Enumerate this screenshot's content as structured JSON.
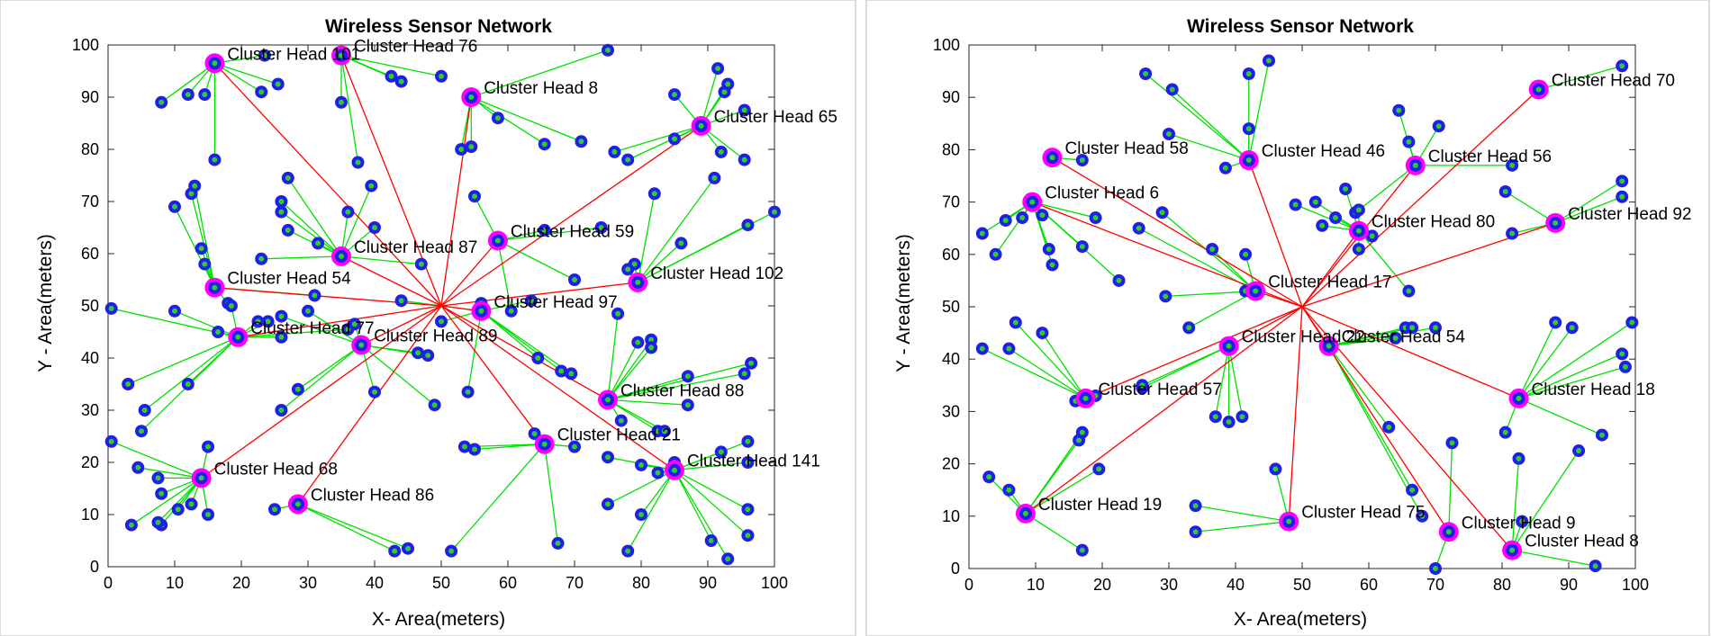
{
  "colors": {
    "node": "#1f1fe8",
    "node_inner": "#2ecc2e",
    "member_link": "#00e000",
    "head_link": "#ff0000",
    "head_ring": "#ff00ff"
  },
  "chart_data": [
    {
      "type": "scatter",
      "title": "Wireless Sensor Network",
      "xlabel": "X- Area(meters)",
      "ylabel": "Y - Area(meters)",
      "xlim": [
        0,
        100
      ],
      "ylim": [
        0,
        100
      ],
      "xticks": [
        "0",
        "10",
        "20",
        "30",
        "40",
        "50",
        "60",
        "70",
        "80",
        "90",
        "100"
      ],
      "yticks": [
        "0",
        "10",
        "20",
        "30",
        "40",
        "50",
        "60",
        "70",
        "80",
        "90",
        "100"
      ],
      "sink": [
        50,
        50
      ],
      "cluster_heads": [
        {
          "label": "Cluster Head 101",
          "x": 16,
          "y": 96.5,
          "members": [
            [
              8,
              89
            ],
            [
              12,
              90.5
            ],
            [
              14.5,
              90.5
            ],
            [
              23.5,
              98
            ],
            [
              16,
              78
            ],
            [
              23,
              91
            ],
            [
              25.5,
              92.5
            ]
          ]
        },
        {
          "label": "Cluster Head 76",
          "x": 35,
          "y": 98,
          "members": [
            [
              35,
              89
            ],
            [
              42.5,
              94
            ],
            [
              44,
              93
            ],
            [
              50,
              94
            ],
            [
              37.5,
              77.5
            ]
          ]
        },
        {
          "label": "Cluster Head 8",
          "x": 54.5,
          "y": 90,
          "members": [
            [
              53,
              80
            ],
            [
              54.5,
              80.5
            ],
            [
              58.5,
              86
            ],
            [
              65.5,
              81
            ],
            [
              71,
              81.5
            ],
            [
              75,
              99
            ]
          ]
        },
        {
          "label": "Cluster Head 65",
          "x": 89,
          "y": 84.5,
          "members": [
            [
              85,
              90.5
            ],
            [
              91.5,
              95.5
            ],
            [
              92.5,
              91
            ],
            [
              93,
              92.5
            ],
            [
              95.5,
              87.5
            ],
            [
              95.5,
              78
            ],
            [
              92,
              79.5
            ],
            [
              85,
              82
            ],
            [
              78,
              78
            ],
            [
              76,
              79.5
            ]
          ]
        },
        {
          "label": "Cluster Head 87",
          "x": 35,
          "y": 59.5,
          "members": [
            [
              27,
              74.5
            ],
            [
              26,
              70
            ],
            [
              26,
              68
            ],
            [
              27,
              64.5
            ],
            [
              31.5,
              62
            ],
            [
              36,
              68
            ],
            [
              39.5,
              73
            ],
            [
              40,
              65
            ],
            [
              47,
              58
            ],
            [
              23,
              59
            ]
          ]
        },
        {
          "label": "Cluster Head 59",
          "x": 58.5,
          "y": 62.5,
          "members": [
            [
              55,
              71
            ],
            [
              65.5,
              64.5
            ],
            [
              70,
              55
            ],
            [
              74,
              65
            ],
            [
              60.5,
              49
            ]
          ]
        },
        {
          "label": "Cluster Head 102",
          "x": 79.5,
          "y": 54.5,
          "members": [
            [
              82,
              71.5
            ],
            [
              79,
              58
            ],
            [
              86,
              62
            ],
            [
              91,
              74.5
            ],
            [
              96,
              65.5
            ],
            [
              100,
              68
            ],
            [
              78,
              57
            ]
          ]
        },
        {
          "label": "Cluster Head 54",
          "x": 16,
          "y": 53.5,
          "members": [
            [
              10,
              69
            ],
            [
              12.5,
              71.5
            ],
            [
              13,
              73
            ],
            [
              14,
              61
            ],
            [
              14.5,
              58
            ],
            [
              18,
              50.5
            ],
            [
              31,
              52
            ]
          ]
        },
        {
          "label": "Cluster Head 97",
          "x": 56,
          "y": 49,
          "members": [
            [
              56,
              50.5
            ],
            [
              63.5,
              51
            ],
            [
              64.5,
              40
            ],
            [
              68,
              37.5
            ],
            [
              69.5,
              37
            ],
            [
              54,
              33.5
            ],
            [
              50,
              47
            ],
            [
              44,
              51
            ]
          ]
        },
        {
          "label": "Cluster Head 77",
          "x": 19.5,
          "y": 44,
          "members": [
            [
              0.5,
              49.5
            ],
            [
              10,
              49
            ],
            [
              16.5,
              45
            ],
            [
              18.5,
              50
            ],
            [
              22.5,
              47
            ],
            [
              24,
              47
            ],
            [
              26,
              44
            ],
            [
              36,
              45.5
            ],
            [
              12,
              35
            ],
            [
              5.5,
              30
            ],
            [
              3,
              35
            ],
            [
              5,
              26
            ]
          ]
        },
        {
          "label": "Cluster Head 89",
          "x": 38,
          "y": 42.5,
          "members": [
            [
              26,
              48
            ],
            [
              30,
              49
            ],
            [
              37,
              46.5
            ],
            [
              46.5,
              41
            ],
            [
              48,
              40.5
            ],
            [
              40,
              33.5
            ],
            [
              49,
              31
            ],
            [
              28.5,
              34
            ],
            [
              26,
              30
            ]
          ]
        },
        {
          "label": "Cluster Head 88",
          "x": 75,
          "y": 32,
          "members": [
            [
              76.5,
              48.5
            ],
            [
              79.5,
              43
            ],
            [
              81.5,
              43.5
            ],
            [
              81.5,
              42
            ],
            [
              87,
              36.5
            ],
            [
              87,
              31
            ],
            [
              95.5,
              37
            ],
            [
              96.5,
              39
            ],
            [
              77,
              28
            ],
            [
              82.5,
              26
            ],
            [
              83.5,
              26
            ]
          ]
        },
        {
          "label": "Cluster Head 21",
          "x": 65.5,
          "y": 23.5,
          "members": [
            [
              64,
              25.5
            ],
            [
              70,
              23
            ],
            [
              53.5,
              23
            ],
            [
              55,
              22.5
            ],
            [
              67.5,
              4.5
            ],
            [
              51.5,
              3
            ]
          ]
        },
        {
          "label": "Cluster Head 141",
          "x": 85,
          "y": 18.5,
          "members": [
            [
              75,
              21
            ],
            [
              80,
              19.5
            ],
            [
              82.5,
              18
            ],
            [
              85,
              20
            ],
            [
              92,
              22
            ],
            [
              96,
              24
            ],
            [
              96,
              20
            ],
            [
              75,
              12
            ],
            [
              80,
              10
            ],
            [
              90.5,
              5
            ],
            [
              93,
              1.5
            ],
            [
              96,
              6
            ],
            [
              96,
              11
            ],
            [
              78,
              3
            ]
          ]
        },
        {
          "label": "Cluster Head 68",
          "x": 14,
          "y": 17,
          "members": [
            [
              0.5,
              24
            ],
            [
              4.5,
              19
            ],
            [
              7.5,
              17
            ],
            [
              8,
              14
            ],
            [
              10.5,
              11
            ],
            [
              15,
              23
            ],
            [
              15,
              10
            ],
            [
              12.5,
              12
            ],
            [
              8,
              8
            ],
            [
              3.5,
              8
            ],
            [
              7.5,
              8.5
            ]
          ]
        },
        {
          "label": "Cluster Head 86",
          "x": 28.5,
          "y": 12,
          "members": [
            [
              25,
              11
            ],
            [
              43,
              3
            ],
            [
              45,
              3.5
            ]
          ]
        }
      ]
    },
    {
      "type": "scatter",
      "title": "Wireless Sensor Network",
      "xlabel": "X- Area(meters)",
      "ylabel": "Y - Area(meters)",
      "xlim": [
        0,
        100
      ],
      "ylim": [
        0,
        100
      ],
      "xticks": [
        "0",
        "10",
        "20",
        "30",
        "40",
        "50",
        "60",
        "70",
        "80",
        "90",
        "100"
      ],
      "yticks": [
        "0",
        "10",
        "20",
        "30",
        "40",
        "50",
        "60",
        "70",
        "80",
        "90",
        "100"
      ],
      "sink": [
        50,
        50
      ],
      "cluster_heads": [
        {
          "label": "Cluster Head 70",
          "x": 85.5,
          "y": 91.5,
          "members": [
            [
              98,
              96
            ]
          ]
        },
        {
          "label": "Cluster Head 58",
          "x": 12.5,
          "y": 78.5,
          "members": [
            [
              17,
              78
            ]
          ]
        },
        {
          "label": "Cluster Head 46",
          "x": 42,
          "y": 78,
          "members": [
            [
              26.5,
              94.5
            ],
            [
              30.5,
              91.5
            ],
            [
              38.5,
              76.5
            ],
            [
              42,
              84
            ],
            [
              42,
              94.5
            ],
            [
              45,
              97
            ],
            [
              30,
              83
            ]
          ]
        },
        {
          "label": "Cluster Head 56",
          "x": 67,
          "y": 77,
          "members": [
            [
              64.5,
              87.5
            ],
            [
              66,
              81.5
            ],
            [
              70.5,
              84.5
            ],
            [
              81.5,
              77
            ],
            [
              58,
              68
            ]
          ]
        },
        {
          "label": "Cluster Head 92",
          "x": 88,
          "y": 66,
          "members": [
            [
              98,
              74
            ],
            [
              98,
              71
            ],
            [
              81.5,
              64
            ],
            [
              80.5,
              72
            ]
          ]
        },
        {
          "label": "Cluster Head 6",
          "x": 9.5,
          "y": 70,
          "members": [
            [
              2,
              64
            ],
            [
              4,
              60
            ],
            [
              5.5,
              66.5
            ],
            [
              8,
              67
            ],
            [
              11,
              67.5
            ],
            [
              12,
              61
            ],
            [
              12.5,
              58
            ],
            [
              17,
              61.5
            ],
            [
              19,
              67
            ],
            [
              22.5,
              55
            ]
          ]
        },
        {
          "label": "Cluster Head 80",
          "x": 58.5,
          "y": 64.5,
          "members": [
            [
              49,
              69.5
            ],
            [
              52,
              70
            ],
            [
              53,
              65.5
            ],
            [
              55,
              67
            ],
            [
              56.5,
              72.5
            ],
            [
              58.5,
              68.5
            ],
            [
              58.5,
              61
            ],
            [
              60.5,
              63.5
            ],
            [
              66,
              53
            ]
          ]
        },
        {
          "label": "Cluster Head 17",
          "x": 43,
          "y": 53,
          "members": [
            [
              25.5,
              65
            ],
            [
              29,
              68
            ],
            [
              29.5,
              52
            ],
            [
              36.5,
              61
            ],
            [
              41.5,
              53
            ],
            [
              41.5,
              60
            ],
            [
              33,
              46
            ]
          ]
        },
        {
          "label": "Cluster Head 54",
          "x": 54,
          "y": 42.5,
          "members": [
            [
              65.5,
              46
            ],
            [
              66.5,
              46
            ],
            [
              70,
              46
            ],
            [
              64,
              44
            ],
            [
              63,
              27
            ],
            [
              66.5,
              15
            ],
            [
              68,
              10
            ]
          ]
        },
        {
          "label": "Cluster Head 22",
          "x": 39,
          "y": 42.5,
          "members": [
            [
              37,
              29
            ],
            [
              39,
              28
            ],
            [
              41,
              29
            ],
            [
              26,
              34.5
            ],
            [
              26,
              35
            ]
          ]
        },
        {
          "label": "Cluster Head 57",
          "x": 17.5,
          "y": 32.5,
          "members": [
            [
              2,
              42
            ],
            [
              6,
              42
            ],
            [
              7,
              47
            ],
            [
              11,
              45
            ],
            [
              16,
              32
            ],
            [
              19,
              33
            ]
          ]
        },
        {
          "label": "Cluster Head 18",
          "x": 82.5,
          "y": 32.5,
          "members": [
            [
              88,
              47
            ],
            [
              90.5,
              46
            ],
            [
              98,
              41
            ],
            [
              98.5,
              38.5
            ],
            [
              99.5,
              47
            ],
            [
              80.5,
              26
            ],
            [
              95,
              25.5
            ]
          ]
        },
        {
          "label": "Cluster Head 19",
          "x": 8.5,
          "y": 10.5,
          "members": [
            [
              3,
              17.5
            ],
            [
              6,
              15
            ],
            [
              16.5,
              24.5
            ],
            [
              17,
              26
            ],
            [
              19.5,
              19
            ],
            [
              17,
              3.5
            ]
          ]
        },
        {
          "label": "Cluster Head 75",
          "x": 48,
          "y": 9,
          "members": [
            [
              34,
              12
            ],
            [
              34,
              7
            ],
            [
              46,
              19
            ]
          ]
        },
        {
          "label": "Cluster Head 9",
          "x": 72,
          "y": 7,
          "members": [
            [
              70,
              0
            ],
            [
              72.5,
              24
            ]
          ]
        },
        {
          "label": "Cluster Head 8",
          "x": 81.5,
          "y": 3.5,
          "members": [
            [
              82.5,
              21
            ],
            [
              83,
              9
            ],
            [
              91.5,
              22.5
            ],
            [
              94,
              0.5
            ]
          ]
        }
      ]
    }
  ]
}
